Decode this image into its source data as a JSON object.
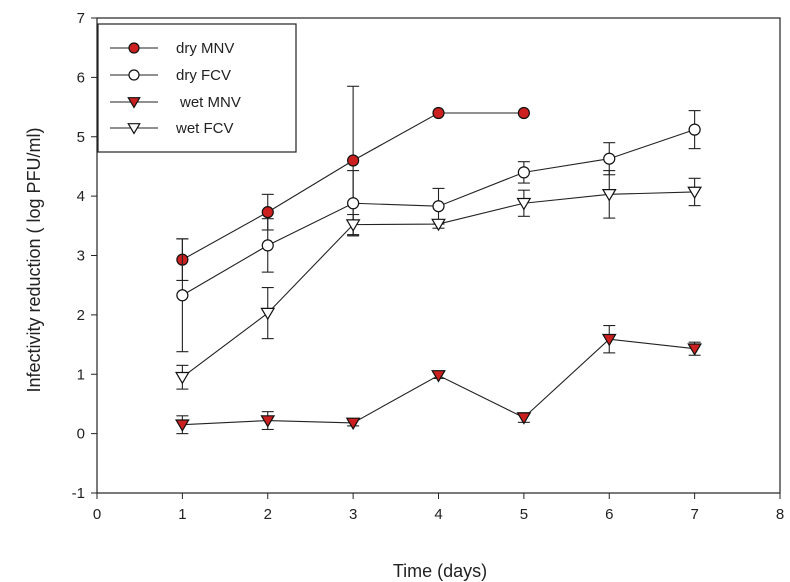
{
  "chart_data": {
    "type": "line",
    "title": "",
    "xlabel": "Time (days)",
    "ylabel": "Infectivity reduction ( log PFU/ml)",
    "xlim": [
      0,
      8
    ],
    "ylim": [
      -1,
      7
    ],
    "xticks": [
      "0",
      "1",
      "2",
      "3",
      "4",
      "5",
      "6",
      "7",
      "8"
    ],
    "yticks": [
      "-1",
      "0",
      "1",
      "2",
      "3",
      "4",
      "5",
      "6",
      "7"
    ],
    "grid": false,
    "legend_position": "top-left",
    "series": [
      {
        "name": "dry MNV",
        "marker": "filled-circle",
        "color": "#cc1f1f",
        "points": [
          {
            "x": 1,
            "y": 2.93,
            "err": 0.35
          },
          {
            "x": 2,
            "y": 3.73,
            "err": 0.3
          },
          {
            "x": 3,
            "y": 4.6,
            "err": 1.25
          },
          {
            "x": 4,
            "y": 5.4,
            "err": 0
          },
          {
            "x": 5,
            "y": 5.4,
            "err": 0
          }
        ]
      },
      {
        "name": "dry FCV",
        "marker": "open-circle",
        "color": "#ffffff",
        "points": [
          {
            "x": 1,
            "y": 2.33,
            "err": 0.95
          },
          {
            "x": 2,
            "y": 3.17,
            "err": 0.45
          },
          {
            "x": 3,
            "y": 3.88,
            "err": 0.55
          },
          {
            "x": 4,
            "y": 3.83,
            "err": 0.3
          },
          {
            "x": 5,
            "y": 4.4,
            "err": 0.18
          },
          {
            "x": 6,
            "y": 4.63,
            "err": 0.27
          },
          {
            "x": 7,
            "y": 5.12,
            "err": 0.32
          }
        ]
      },
      {
        "name": "wet MNV",
        "marker": "filled-triangle-down",
        "color": "#cc1f1f",
        "points": [
          {
            "x": 1,
            "y": 0.15,
            "err": 0.15
          },
          {
            "x": 2,
            "y": 0.22,
            "err": 0.15
          },
          {
            "x": 3,
            "y": 0.18,
            "err": 0.05
          },
          {
            "x": 4,
            "y": 0.98,
            "err": 0.05
          },
          {
            "x": 5,
            "y": 0.27,
            "err": 0.08
          },
          {
            "x": 6,
            "y": 1.59,
            "err": 0.23
          },
          {
            "x": 7,
            "y": 1.43,
            "err": 0.11
          }
        ]
      },
      {
        "name": "wet FCV",
        "marker": "open-triangle-down",
        "color": "#ffffff",
        "points": [
          {
            "x": 1,
            "y": 0.95,
            "err": 0.2
          },
          {
            "x": 2,
            "y": 2.03,
            "err": 0.43
          },
          {
            "x": 3,
            "y": 3.52,
            "err": 0.17
          },
          {
            "x": 4,
            "y": 3.53,
            "err": 0.07
          },
          {
            "x": 5,
            "y": 3.88,
            "err": 0.22
          },
          {
            "x": 6,
            "y": 4.03,
            "err": 0.4
          },
          {
            "x": 7,
            "y": 4.07,
            "err": 0.23
          }
        ]
      }
    ]
  }
}
